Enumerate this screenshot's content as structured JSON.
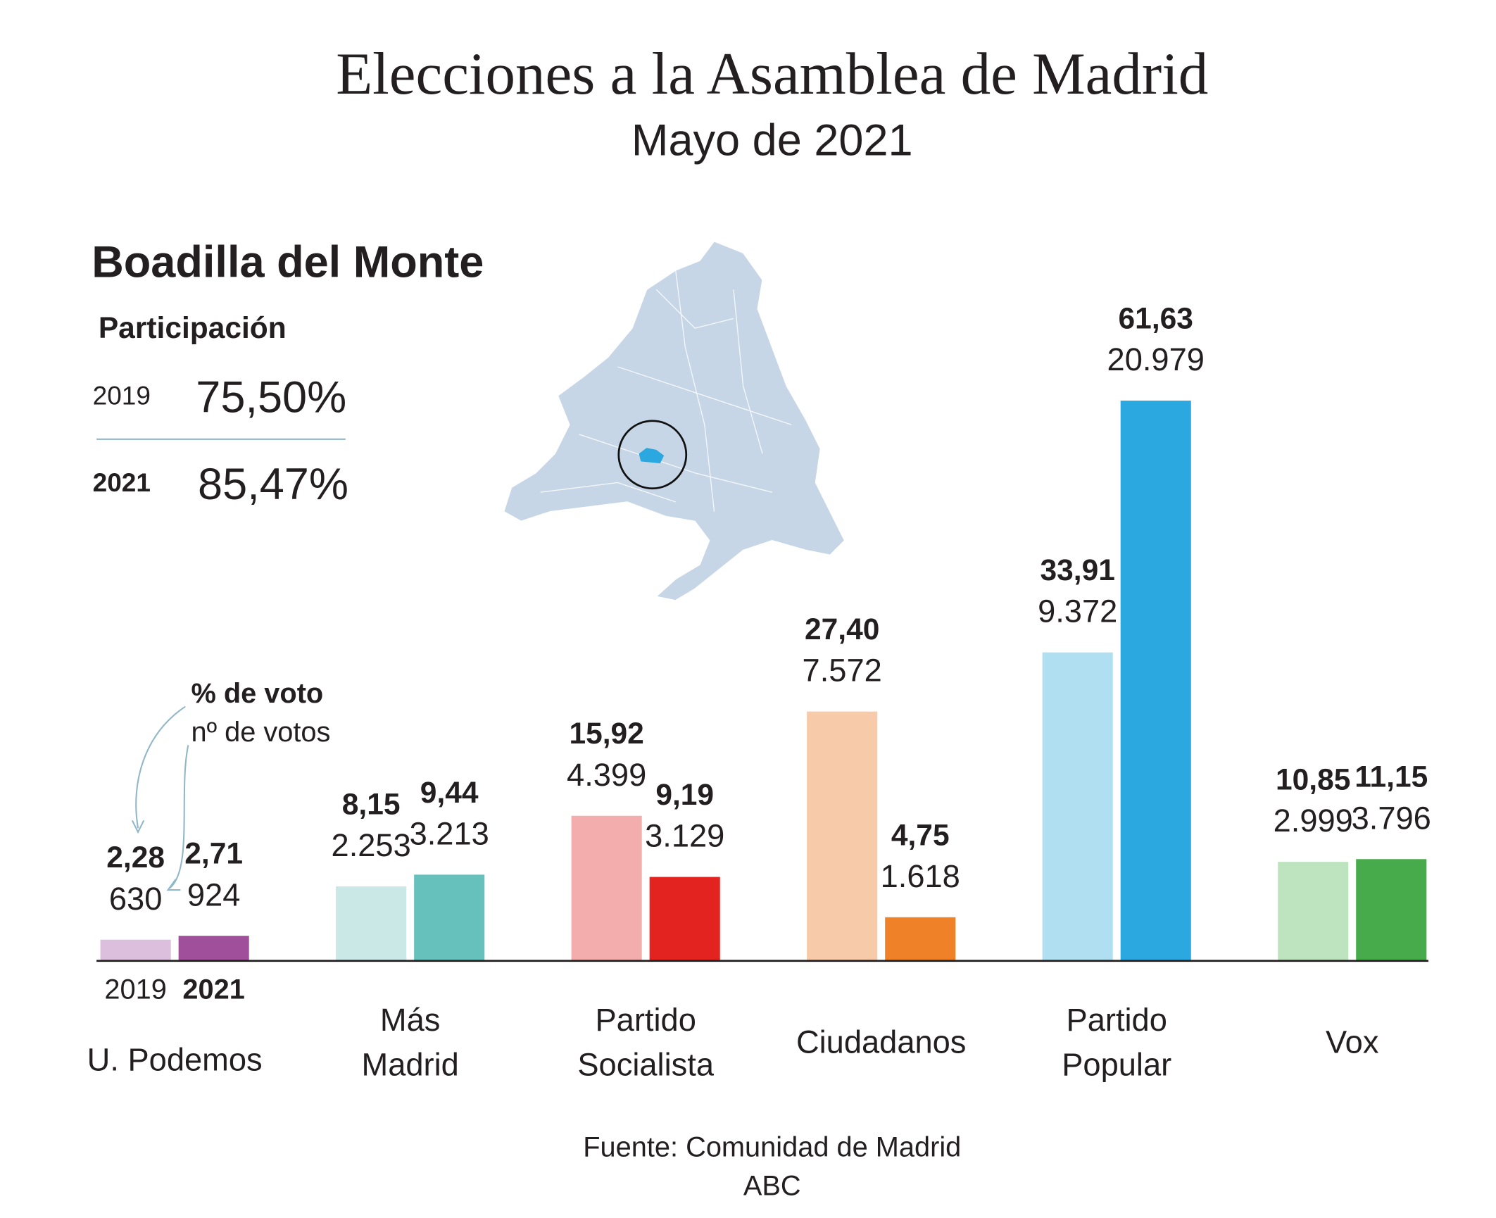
{
  "title": "Elecciones a la Asamblea de Madrid",
  "subtitle": "Mayo de 2021",
  "place": "Boadilla del Monte",
  "participation": {
    "title": "Participación",
    "rows": [
      {
        "year": "2019",
        "value": "75,50%"
      },
      {
        "year": "2021",
        "value": "85,47%"
      }
    ]
  },
  "source": "Fuente: Comunidad de Madrid",
  "publisher": "ABC",
  "chart_data": {
    "type": "bar",
    "annotations": [
      "% de voto",
      "nº de votos"
    ],
    "categories": [
      "U. Podemos",
      "Más\nMadrid",
      "Partido\nSocialista",
      "Ciudadanos",
      "Partido\nPopular",
      "Vox"
    ],
    "series": [
      {
        "name": "2019",
        "colors": [
          "#dcbfdc",
          "#c9e8e6",
          "#f3adad",
          "#f7cba9",
          "#b1dff2",
          "#bde3bf"
        ],
        "values": [
          2.28,
          8.15,
          15.92,
          27.4,
          33.91,
          10.85
        ],
        "value_labels": [
          "2,28",
          "8,15",
          "15,92",
          "27,40",
          "33,91",
          "10,85"
        ],
        "votes": [
          630,
          2253,
          4399,
          7572,
          9372,
          2999
        ],
        "votes_labels": [
          "630",
          "2.253",
          "4.399",
          "7.572",
          "9.372",
          "2.999"
        ]
      },
      {
        "name": "2021",
        "colors": [
          "#a0509a",
          "#66c0bc",
          "#e2231f",
          "#ef8229",
          "#2ca8e0",
          "#48ab4b"
        ],
        "values": [
          2.71,
          9.44,
          9.19,
          4.75,
          61.63,
          11.15
        ],
        "value_labels": [
          "2,71",
          "9,44",
          "9,19",
          "4,75",
          "61,63",
          "11,15"
        ],
        "votes": [
          924,
          3213,
          3129,
          1618,
          20979,
          3796
        ],
        "votes_labels": [
          "924",
          "3.213",
          "3.129",
          "1.618",
          "20.979",
          "3.796"
        ]
      }
    ]
  }
}
